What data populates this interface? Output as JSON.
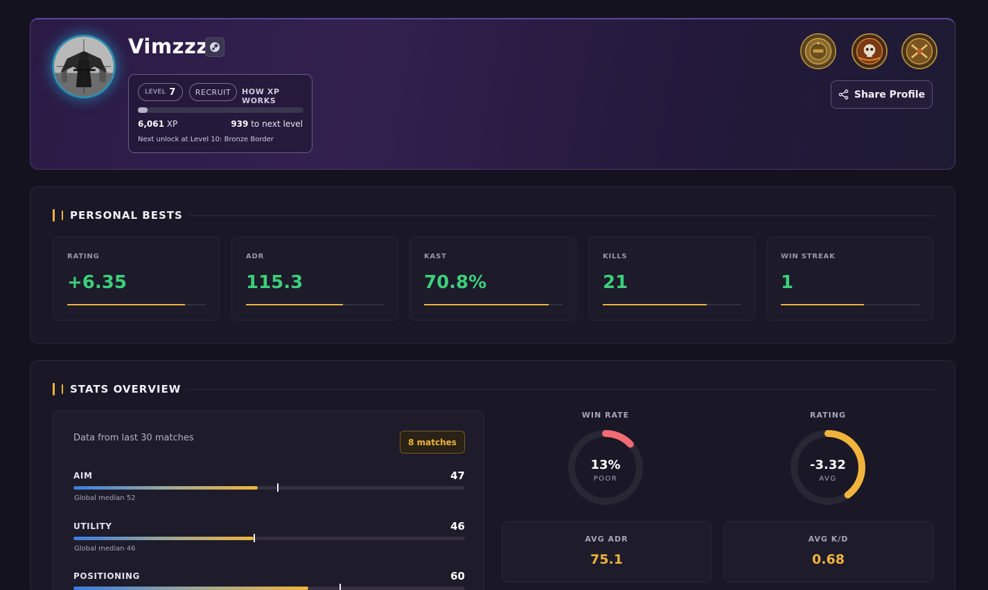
{
  "profile": {
    "username": "Vimzzz",
    "level_label": "LEVEL",
    "level_value": "7",
    "rank_badge": "RECRUIT",
    "xp_link": "HOW XP WORKS",
    "xp_progress": 0.06,
    "xp_value": "6,061",
    "xp_unit": "XP",
    "xp_to_next_value": "939",
    "xp_to_next_label": "to next level",
    "next_unlock": "Next unlock at Level 10: Bronze Border",
    "share_label": "Share Profile",
    "medals": [
      "season-medal-icon",
      "skull-medal-icon",
      "crossed-guns-medal-icon"
    ],
    "avatar_icon": "angel-with-gun-avatar",
    "steam_icon": "steam-icon"
  },
  "personal_bests": {
    "title": "PERSONAL BESTS",
    "items": [
      {
        "label": "RATING",
        "value": "+6.35",
        "progress": 0.85
      },
      {
        "label": "ADR",
        "value": "115.3",
        "progress": 0.7
      },
      {
        "label": "KAST",
        "value": "70.8%",
        "progress": 0.9
      },
      {
        "label": "KILLS",
        "value": "21",
        "progress": 0.75
      },
      {
        "label": "WIN STREAK",
        "value": "1",
        "progress": 0.6
      }
    ]
  },
  "stats_overview": {
    "title": "STATS OVERVIEW",
    "data_from": "Data from last 30 matches",
    "matches_badge": "8 matches",
    "metrics": [
      {
        "name": "AIM",
        "value": "47",
        "fill": 0.47,
        "median_pos": 0.52,
        "median_label": "Global median 52"
      },
      {
        "name": "UTILITY",
        "value": "46",
        "fill": 0.46,
        "median_pos": 0.46,
        "median_label": "Global median 46"
      },
      {
        "name": "POSITIONING",
        "value": "60",
        "fill": 0.6,
        "median_pos": 0.68,
        "median_label": ""
      }
    ],
    "win_rate": {
      "label": "WIN RATE",
      "value": "13%",
      "sub": "POOR",
      "fraction": 0.13,
      "color": "#f06b73"
    },
    "rating": {
      "label": "RATING",
      "value": "-3.32",
      "sub": "AVG",
      "fraction": 0.4,
      "color": "#f0b43c"
    },
    "avg_adr": {
      "label": "AVG ADR",
      "value": "75.1"
    },
    "avg_kd": {
      "label": "AVG K/D",
      "value": "0.68"
    }
  },
  "colors": {
    "accent": "#f0b43c",
    "positive": "#3ad07a",
    "negative": "#f06b73",
    "background": "#15121f"
  }
}
